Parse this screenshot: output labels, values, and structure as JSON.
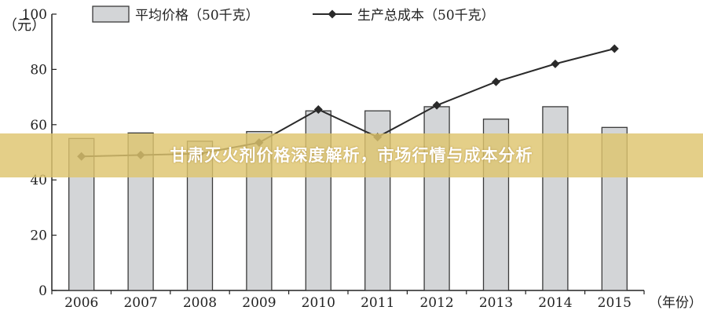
{
  "banner": {
    "text": "甘肃灭火剂价格深度解析，市场行情与成本分析"
  },
  "chart_data": {
    "type": "bar",
    "xlabel": "（年份）",
    "ylabel": "（元）",
    "ylim": [
      0,
      100
    ],
    "yticks": [
      0,
      20,
      40,
      60,
      80,
      100
    ],
    "categories": [
      "2006",
      "2007",
      "2008",
      "2009",
      "2010",
      "2011",
      "2012",
      "2013",
      "2014",
      "2015"
    ],
    "series": [
      {
        "name": "平均价格（50千克）",
        "type": "bar",
        "values": [
          55,
          57,
          54,
          57.5,
          65,
          65,
          66.5,
          62,
          66.5,
          59
        ]
      },
      {
        "name": "生产总成本（50千克）",
        "type": "line",
        "values": [
          48.5,
          49,
          49.5,
          53.5,
          65.5,
          55.5,
          67,
          75.5,
          82,
          87.5
        ]
      }
    ],
    "colors": {
      "bar_fill": "#d3d5d7",
      "bar_stroke": "#3a3a3a",
      "line": "#2a2a2a",
      "axis": "#222222"
    },
    "legend_position": "top"
  }
}
